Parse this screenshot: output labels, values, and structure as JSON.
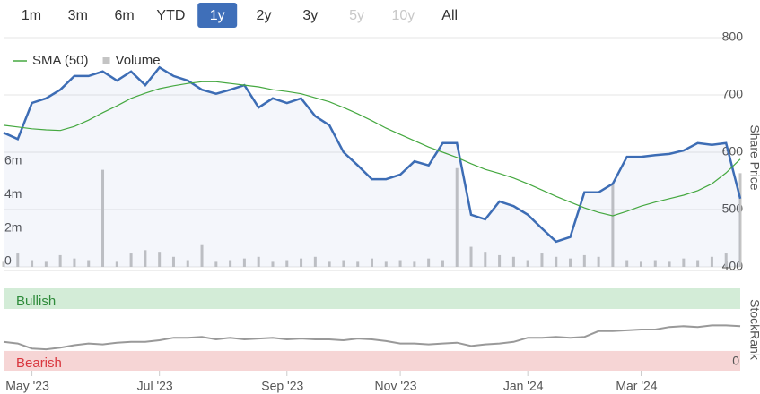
{
  "range_selector": {
    "options": [
      "1m",
      "3m",
      "6m",
      "YTD",
      "1y",
      "2y",
      "3y",
      "5y",
      "10y",
      "All"
    ],
    "selected": "1y",
    "disabled": [
      "5y",
      "10y"
    ]
  },
  "chart_data": {
    "type": "line",
    "categories": [
      null,
      null,
      "May '23",
      null,
      null,
      null,
      null,
      null,
      null,
      null,
      null,
      "Jul '23",
      null,
      null,
      null,
      null,
      null,
      null,
      null,
      null,
      "Sep '23",
      null,
      null,
      null,
      null,
      null,
      null,
      null,
      "Nov '23",
      null,
      null,
      null,
      null,
      null,
      null,
      null,
      null,
      "Jan '24",
      null,
      null,
      null,
      null,
      null,
      null,
      null,
      "Mar '24",
      null,
      null,
      null,
      null,
      null,
      null,
      null
    ],
    "ylabel": "Share Price",
    "ylim": [
      400,
      800
    ],
    "yticks": [
      400,
      500,
      600,
      700,
      800
    ],
    "y2lim": [
      0,
      13700000
    ],
    "y2ticks": [
      0,
      {
        "value": 2000000,
        "label": "2m"
      },
      {
        "value": 4000000,
        "label": "4m"
      },
      {
        "value": 6000000,
        "label": "6m"
      }
    ],
    "grid": true,
    "legend": "top-left",
    "series": [
      {
        "color": "#3d6db5",
        "values": [
          634,
          623,
          686,
          694,
          709,
          733,
          733,
          741,
          725,
          741,
          717,
          748,
          733,
          725,
          709,
          702,
          709,
          717,
          678,
          694,
          686,
          694,
          663,
          647,
          600,
          577,
          553,
          553,
          561,
          584,
          577,
          616,
          616,
          491,
          483,
          514,
          506,
          491,
          467,
          444,
          452,
          530,
          530,
          545,
          592,
          592,
          595,
          597,
          603,
          616,
          613,
          616,
          519
        ]
      },
      {
        "name": "SMA (50)",
        "color": "#45a840",
        "values": [
          647,
          644,
          641,
          639,
          638,
          645,
          656,
          669,
          681,
          694,
          703,
          711,
          716,
          720,
          723,
          723,
          720,
          717,
          714,
          709,
          706,
          702,
          695,
          688,
          678,
          667,
          655,
          642,
          631,
          620,
          609,
          600,
          591,
          580,
          570,
          563,
          555,
          545,
          534,
          523,
          513,
          503,
          495,
          489,
          497,
          506,
          513,
          519,
          525,
          533,
          545,
          564,
          588
        ]
      },
      {
        "name": "Volume",
        "color": "#c4c4c4",
        "type": "bar",
        "axis": "y2",
        "values": [
          300000,
          800000,
          400000,
          300000,
          700000,
          500000,
          400000,
          5800000,
          300000,
          800000,
          1000000,
          900000,
          600000,
          400000,
          1300000,
          300000,
          400000,
          500000,
          600000,
          300000,
          400000,
          500000,
          600000,
          300000,
          400000,
          300000,
          500000,
          300000,
          400000,
          300000,
          500000,
          400000,
          5900000,
          1200000,
          900000,
          700000,
          600000,
          400000,
          800000,
          600000,
          500000,
          700000,
          600000,
          5000000,
          400000,
          300000,
          400000,
          300000,
          500000,
          400000,
          600000,
          800000,
          5600000
        ]
      }
    ],
    "stockrank": {
      "type": "line",
      "ylabel": "StockRank",
      "ylim": [
        0,
        100
      ],
      "yticks": [
        0
      ],
      "color": "#999999",
      "values": [
        35,
        33,
        27,
        26,
        28,
        31,
        33,
        32,
        34,
        35,
        35,
        37,
        40,
        40,
        41,
        38,
        40,
        38,
        39,
        40,
        38,
        39,
        38,
        38,
        37,
        39,
        38,
        36,
        33,
        33,
        32,
        33,
        34,
        30,
        32,
        33,
        35,
        40,
        40,
        41,
        40,
        41,
        48,
        48,
        49,
        50,
        50,
        53,
        54,
        53,
        55,
        55,
        54
      ],
      "zones": [
        {
          "label": "Bullish",
          "range": [
            75,
            100
          ],
          "color": "#d3ecd7",
          "text_color": "#2e8b3a"
        },
        {
          "label": "Bearish",
          "range": [
            0,
            24
          ],
          "color": "#f6d5d5",
          "text_color": "#d9363e"
        }
      ]
    }
  }
}
